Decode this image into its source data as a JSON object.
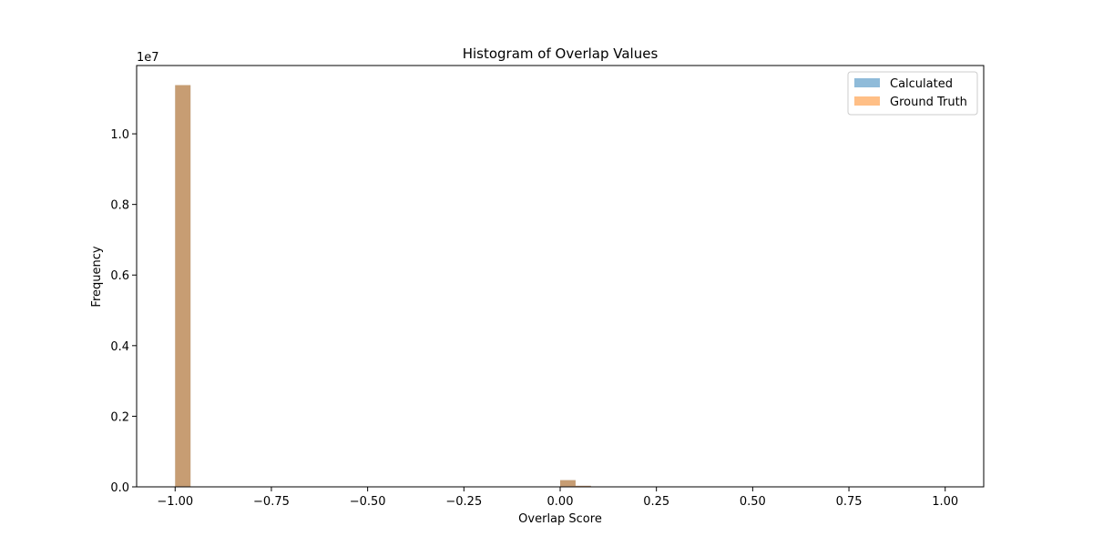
{
  "chart_data": {
    "type": "bar",
    "title": "Histogram of Overlap Values",
    "xlabel": "Overlap Score",
    "ylabel": "Frequency",
    "y_offset_text": "1e7",
    "xlim": [
      -1.1,
      1.1
    ],
    "ylim": [
      0,
      11935000
    ],
    "x_ticks": [
      -1.0,
      -0.75,
      -0.5,
      -0.25,
      0.0,
      0.25,
      0.5,
      0.75,
      1.0
    ],
    "x_tick_labels": [
      "−1.00",
      "−0.75",
      "−0.50",
      "−0.25",
      "0.00",
      "0.25",
      "0.50",
      "0.75",
      "1.00"
    ],
    "y_ticks": [
      0,
      2000000,
      4000000,
      6000000,
      8000000,
      10000000
    ],
    "y_tick_labels": [
      "0.0",
      "0.2",
      "0.4",
      "0.6",
      "0.8",
      "1.0"
    ],
    "bin_width": 0.04,
    "legend_position": "top-right",
    "series": [
      {
        "name": "Calculated",
        "color": "#1f77b4",
        "bins": [
          {
            "x0": -1.0,
            "x1": -0.96,
            "y": 11380000
          },
          {
            "x0": 0.0,
            "x1": 0.04,
            "y": 190000
          },
          {
            "x0": 0.04,
            "x1": 0.08,
            "y": 30000
          }
        ]
      },
      {
        "name": "Ground Truth",
        "color": "#ff7f0e",
        "bins": [
          {
            "x0": -1.0,
            "x1": -0.96,
            "y": 11380000
          },
          {
            "x0": 0.0,
            "x1": 0.04,
            "y": 190000
          },
          {
            "x0": 0.04,
            "x1": 0.08,
            "y": 30000
          }
        ]
      }
    ]
  }
}
